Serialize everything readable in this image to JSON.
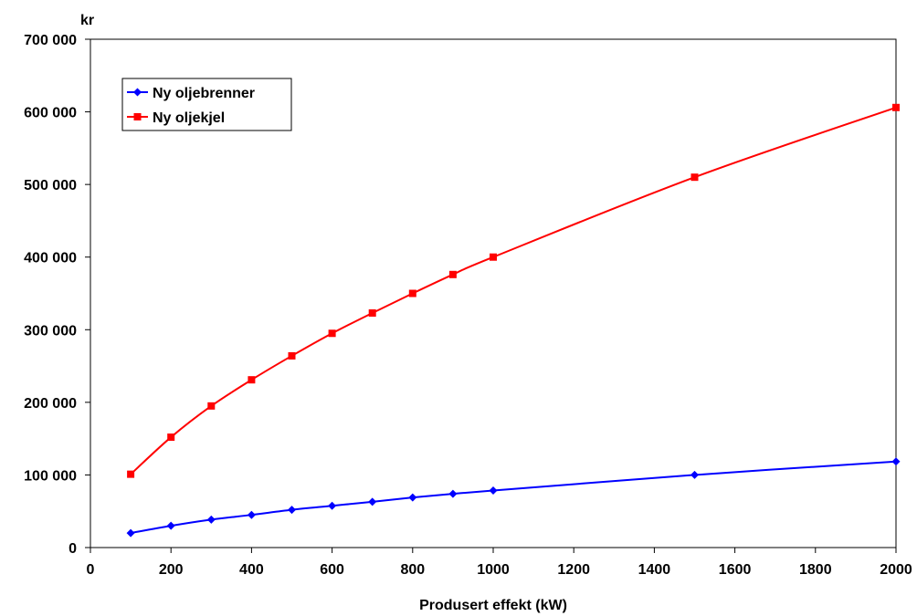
{
  "chart_data": {
    "type": "line",
    "title": "",
    "xlabel": "Produsert effekt (kW)",
    "ylabel": "kr",
    "xlim": [
      0,
      2000
    ],
    "ylim": [
      0,
      700000
    ],
    "xticks": [
      0,
      200,
      400,
      600,
      800,
      1000,
      1200,
      1400,
      1600,
      1800,
      2000
    ],
    "xtick_labels": [
      "0",
      "200",
      "400",
      "600",
      "800",
      "1000",
      "1200",
      "1400",
      "1600",
      "1800",
      "2000"
    ],
    "yticks": [
      0,
      100000,
      200000,
      300000,
      400000,
      500000,
      600000,
      700000
    ],
    "ytick_labels": [
      "0",
      "100 000",
      "200 000",
      "300 000",
      "400 000",
      "500 000",
      "600 000",
      "700 000"
    ],
    "grid": false,
    "legend_position": "top-left",
    "series": [
      {
        "name": "Ny oljebrenner",
        "color": "#0000ff",
        "marker": "diamond",
        "x": [
          100,
          200,
          300,
          400,
          500,
          600,
          700,
          800,
          900,
          1000,
          1500,
          2000
        ],
        "values": [
          20000,
          30000,
          38500,
          45000,
          52000,
          57500,
          63000,
          69000,
          74000,
          78500,
          100000,
          118500
        ]
      },
      {
        "name": "Ny oljekjel",
        "color": "#ff0000",
        "marker": "square",
        "x": [
          100,
          200,
          300,
          400,
          500,
          600,
          700,
          800,
          900,
          1000,
          1500,
          2000
        ],
        "values": [
          101000,
          152000,
          195000,
          231000,
          264000,
          295000,
          323000,
          350000,
          376000,
          400000,
          510000,
          606000
        ]
      }
    ]
  }
}
